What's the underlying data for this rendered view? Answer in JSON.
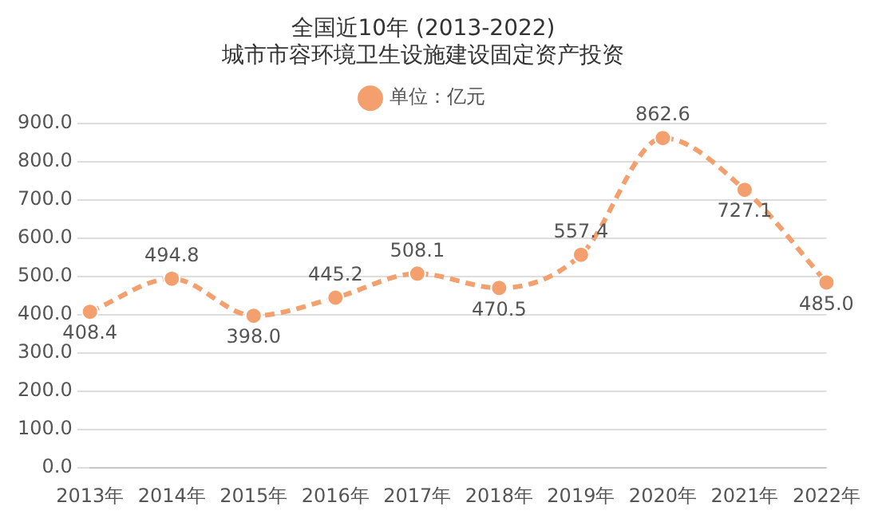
{
  "chart_data": {
    "type": "line",
    "title": "全国近10年 (2013-2022)",
    "subtitle": "城市市容环境卫生设施建设固定资产投资",
    "categories": [
      "2013年",
      "2014年",
      "2015年",
      "2016年",
      "2017年",
      "2018年",
      "2019年",
      "2020年",
      "2021年",
      "2022年"
    ],
    "series": [
      {
        "name": "单位：亿元",
        "color": "#f4a06e",
        "values": [
          408.4,
          494.8,
          398.0,
          445.2,
          508.1,
          470.5,
          557.4,
          862.6,
          727.1,
          485.0
        ],
        "value_labels": [
          "408.4",
          "494.8",
          "398.0",
          "445.2",
          "508.1",
          "470.5",
          "557.4",
          "862.6",
          "727.1",
          "485.0"
        ]
      }
    ],
    "ylim": [
      0,
      900
    ],
    "yticks": [
      {
        "value": 0,
        "label": "0.0"
      },
      {
        "value": 100,
        "label": "100.0"
      },
      {
        "value": 200,
        "label": "200.0"
      },
      {
        "value": 300,
        "label": "300.0"
      },
      {
        "value": 400,
        "label": "400.0"
      },
      {
        "value": 500,
        "label": "500.0"
      },
      {
        "value": 600,
        "label": "600.0"
      },
      {
        "value": 700,
        "label": "700.0"
      },
      {
        "value": 800,
        "label": "800.0"
      },
      {
        "value": 900,
        "label": "900.0"
      }
    ],
    "grid": "y",
    "legend": "top",
    "marker": "circle",
    "line_style": "dashed"
  }
}
